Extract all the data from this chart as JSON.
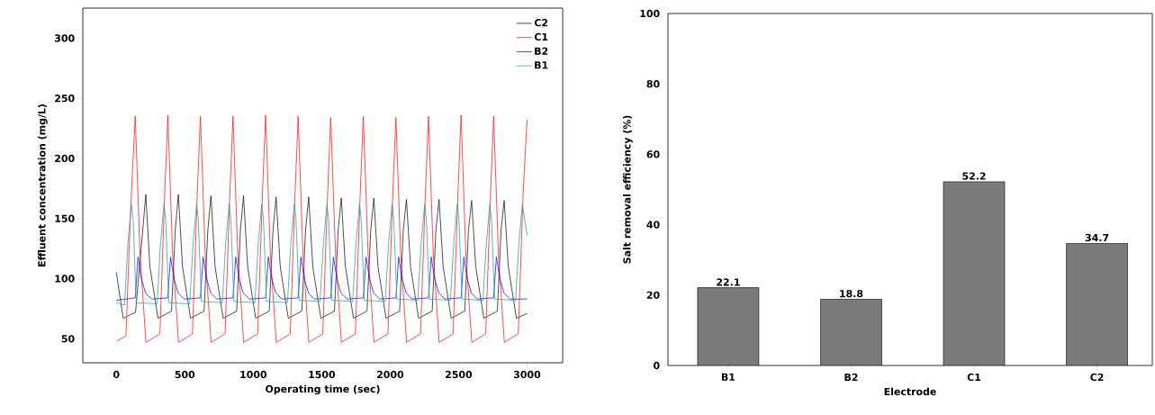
{
  "chart_data": [
    {
      "type": "line",
      "xlabel": "Operating time (sec)",
      "ylabel": "Effluent concentration (mg/L)",
      "xlim": [
        -245,
        3260
      ],
      "ylim": [
        30,
        325
      ],
      "xticks": [
        0,
        500,
        1000,
        1500,
        2000,
        2500,
        3000
      ],
      "yticks": [
        50,
        100,
        150,
        200,
        250,
        300
      ],
      "legend": "top right",
      "grid": false,
      "series": [
        {
          "name": "C2",
          "color": "#222222",
          "x": [
            0,
            50,
            140,
            185,
            215,
            245,
            304,
            403,
            430,
            453,
            483,
            542,
            641,
            668,
            691,
            721,
            780,
            879,
            906,
            929,
            959,
            1018,
            1117,
            1144,
            1167,
            1197,
            1256,
            1355,
            1382,
            1405,
            1435,
            1494,
            1593,
            1620,
            1643,
            1673,
            1732,
            1831,
            1858,
            1881,
            1911,
            1970,
            2069,
            2096,
            2119,
            2149,
            2208,
            2307,
            2334,
            2357,
            2387,
            2446,
            2545,
            2572,
            2595,
            2625,
            2684,
            2783,
            2810,
            2833,
            2863,
            2922,
            3000
          ],
          "values": [
            105,
            67,
            72,
            130,
            170,
            110,
            67,
            73,
            140,
            170,
            110,
            67,
            73,
            140,
            169,
            110,
            67,
            73,
            140,
            169,
            110,
            67,
            73,
            140,
            168,
            110,
            67,
            73,
            140,
            168,
            110,
            67,
            73,
            140,
            167,
            110,
            67,
            73,
            140,
            167,
            110,
            67,
            73,
            140,
            166,
            110,
            67,
            73,
            140,
            166,
            110,
            67,
            73,
            140,
            165,
            110,
            67,
            73,
            140,
            165,
            110,
            67,
            71
          ]
        },
        {
          "name": "C1",
          "color": "#ff2020",
          "x": [
            0,
            70,
            105,
            138,
            173,
            216,
            318,
            353,
            376,
            411,
            454,
            556,
            591,
            614,
            649,
            692,
            794,
            829,
            852,
            887,
            930,
            1032,
            1067,
            1090,
            1125,
            1168,
            1270,
            1305,
            1328,
            1363,
            1406,
            1508,
            1543,
            1566,
            1601,
            1644,
            1746,
            1781,
            1804,
            1839,
            1882,
            1984,
            2019,
            2042,
            2077,
            2120,
            2222,
            2257,
            2280,
            2315,
            2358,
            2460,
            2495,
            2518,
            2553,
            2596,
            2698,
            2733,
            2756,
            2791,
            2834,
            2936,
            2971,
            3000
          ],
          "values": [
            48,
            52,
            160,
            235,
            120,
            47,
            54,
            170,
            236,
            120,
            47,
            54,
            170,
            235,
            120,
            47,
            54,
            170,
            235,
            120,
            47,
            54,
            170,
            236,
            120,
            47,
            54,
            170,
            235,
            120,
            47,
            54,
            170,
            234,
            120,
            47,
            54,
            170,
            235,
            120,
            47,
            54,
            170,
            234,
            120,
            47,
            54,
            170,
            235,
            120,
            47,
            54,
            170,
            236,
            120,
            47,
            54,
            170,
            235,
            120,
            47,
            54,
            170,
            232
          ]
        },
        {
          "name": "B2",
          "color": "#1a1aff",
          "x": [
            0,
            138,
            158,
            183,
            213,
            258,
            376,
            396,
            421,
            451,
            496,
            614,
            634,
            659,
            689,
            734,
            852,
            872,
            897,
            927,
            972,
            1090,
            1110,
            1135,
            1165,
            1210,
            1328,
            1348,
            1373,
            1403,
            1448,
            1566,
            1586,
            1611,
            1641,
            1686,
            1804,
            1824,
            1849,
            1879,
            1924,
            2042,
            2062,
            2087,
            2117,
            2162,
            2280,
            2300,
            2325,
            2355,
            2400,
            2518,
            2538,
            2563,
            2593,
            2638,
            2756,
            2776,
            2801,
            2831,
            2876,
            3000
          ],
          "values": [
            82,
            84,
            118,
            100,
            88,
            83,
            84,
            118,
            100,
            88,
            83,
            84,
            118,
            100,
            88,
            83,
            84,
            118,
            100,
            88,
            83,
            84,
            118,
            100,
            88,
            83,
            84,
            118,
            100,
            88,
            83,
            84,
            118,
            100,
            88,
            83,
            84,
            118,
            100,
            88,
            83,
            84,
            118,
            100,
            88,
            83,
            84,
            118,
            100,
            88,
            83,
            84,
            118,
            100,
            88,
            83,
            84,
            118,
            100,
            88,
            83,
            83
          ]
        },
        {
          "name": "B1",
          "color": "#33a6a0",
          "x": [
            0,
            60,
            85,
            110,
            122,
            145,
            298,
            323,
            348,
            360,
            383,
            536,
            561,
            586,
            598,
            621,
            774,
            799,
            824,
            836,
            859,
            1012,
            1037,
            1062,
            1074,
            1097,
            1250,
            1275,
            1300,
            1312,
            1335,
            1488,
            1513,
            1538,
            1550,
            1573,
            1726,
            1751,
            1776,
            1788,
            1811,
            1964,
            1989,
            2014,
            2026,
            2049,
            2202,
            2227,
            2252,
            2264,
            2287,
            2440,
            2465,
            2490,
            2502,
            2525,
            2678,
            2703,
            2728,
            2740,
            2763,
            2916,
            2941,
            2966,
            3000
          ],
          "values": [
            80,
            78,
            130,
            162,
            150,
            80,
            79,
            130,
            162,
            150,
            80,
            79,
            130,
            162,
            150,
            81,
            80,
            130,
            162,
            150,
            81,
            80,
            130,
            162,
            150,
            81,
            80,
            130,
            162,
            150,
            82,
            81,
            130,
            162,
            150,
            82,
            81,
            130,
            162,
            150,
            82,
            81,
            130,
            162,
            150,
            83,
            82,
            130,
            162,
            150,
            83,
            82,
            130,
            162,
            150,
            83,
            82,
            130,
            162,
            150,
            83,
            82,
            130,
            162,
            136
          ]
        }
      ]
    },
    {
      "type": "bar",
      "xlabel": "Electrode",
      "ylabel": "Salt removal efficiency (%)",
      "categories": [
        "B1",
        "B2",
        "C1",
        "C2"
      ],
      "values": [
        22.1,
        18.8,
        52.2,
        34.7
      ],
      "color": "#7a7a7a",
      "ylim": [
        0,
        100
      ],
      "yticks": [
        0,
        20,
        40,
        60,
        80,
        100
      ],
      "data_labels": true,
      "grid": false,
      "legend": false
    }
  ]
}
